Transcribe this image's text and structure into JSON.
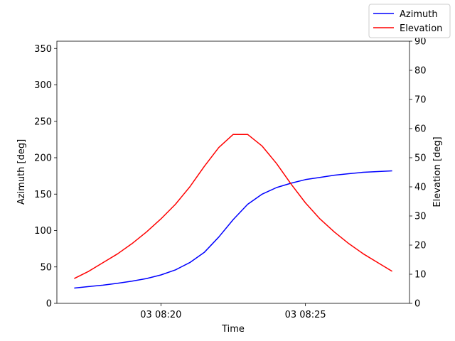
{
  "chart_data": {
    "type": "line",
    "xlabel": "Time",
    "ylabel_left": "Azimuth [deg]",
    "ylabel_right": "Elevation [deg]",
    "x_ticks": [
      "03 08:20",
      "03 08:25"
    ],
    "x_tick_minutes": [
      20,
      25
    ],
    "x_range_minutes": [
      16.4,
      28.6
    ],
    "ylim_left": [
      0,
      360
    ],
    "yticks_left": [
      0,
      50,
      100,
      150,
      200,
      250,
      300,
      350
    ],
    "ylim_right": [
      0,
      90
    ],
    "yticks_right": [
      0,
      10,
      20,
      30,
      40,
      50,
      60,
      70,
      80,
      90
    ],
    "x_minutes": [
      17.0,
      17.5,
      18.0,
      18.5,
      19.0,
      19.5,
      20.0,
      20.5,
      21.0,
      21.5,
      22.0,
      22.5,
      23.0,
      23.5,
      24.0,
      24.5,
      25.0,
      25.5,
      26.0,
      26.5,
      27.0,
      27.5,
      28.0
    ],
    "series": [
      {
        "name": "Azimuth",
        "color": "#0000ff",
        "axis": "left",
        "values": [
          21,
          23,
          25,
          27.5,
          30.5,
          34,
          39,
          46,
          56,
          70,
          91,
          115,
          136,
          150,
          159,
          165,
          170,
          173,
          176,
          178,
          180,
          181,
          182
        ]
      },
      {
        "name": "Elevation",
        "color": "#ff0000",
        "axis": "right",
        "values": [
          8.5,
          11,
          14,
          17,
          20.5,
          24.5,
          29,
          34,
          40,
          47,
          53.5,
          58,
          58,
          54,
          48,
          41,
          34.5,
          29,
          24.5,
          20.5,
          17,
          14,
          11
        ]
      }
    ],
    "legend": "top-right",
    "grid": false
  }
}
